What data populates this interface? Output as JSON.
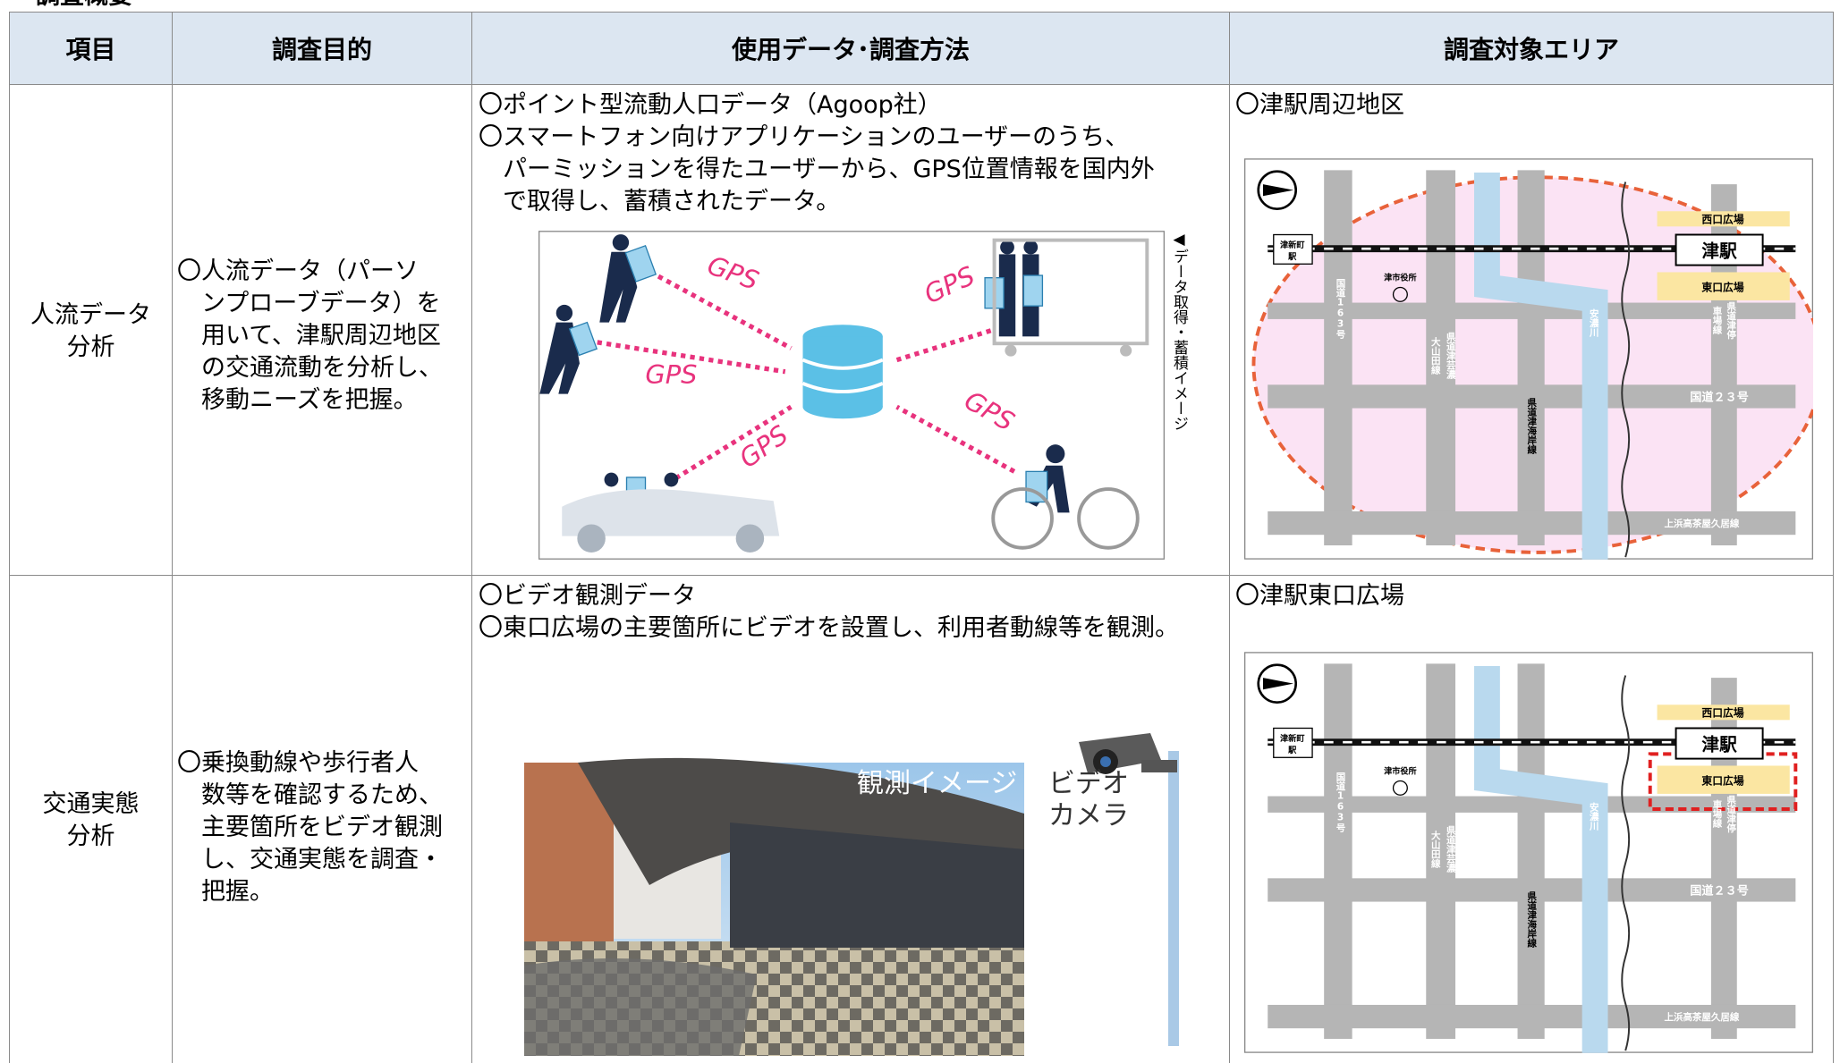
{
  "header": {
    "title": "調査概要"
  },
  "table": {
    "columns": [
      "項目",
      "調査目的",
      "使用データ･調査方法",
      "調査対象エリア"
    ],
    "rows": [
      {
        "item": [
          "人流データ",
          "分析"
        ],
        "purpose": [
          "〇人流データ（パーソ",
          "ンプローブデータ）を",
          "用いて、津駅周辺地区",
          "の交通流動を分析し、",
          "移動ニーズを把握。"
        ],
        "method": [
          "〇ポイント型流動人口データ（Agoop社）",
          "〇スマートフォン向けアプリケーションのユーザーのうち、",
          "パーミッションを得たユーザーから、GPS位置情報を国内外",
          "で取得し、蓄積されたデータ。"
        ],
        "figure": {
          "labels": [
            "GPS",
            "GPS",
            "GPS",
            "GPS",
            "GPS"
          ],
          "caption": "◀データ取得・蓄積イメージ"
        },
        "area": "〇津駅周辺地区",
        "map": {
          "west_plaza": "西口広場",
          "station": "津駅",
          "east_plaza": "東口広場",
          "shinmachi": [
            "津新町",
            "駅"
          ],
          "city_hall": "津市役所",
          "route163": "国道163号",
          "geino": [
            "県道津芸濃",
            "大山田線"
          ],
          "river": "安濃川",
          "teishaba": [
            "県道津停",
            "車場線"
          ],
          "route23": "国道２３号",
          "kaigan": "県道津海岸線",
          "kamihama": "上浜高茶屋久居線"
        }
      },
      {
        "item": [
          "交通実態",
          "分析"
        ],
        "purpose": [
          "〇乗換動線や歩行者人",
          "数等を確認するため、",
          "主要箇所をビデオ観測",
          "し、交通実態を調査・",
          "把握。"
        ],
        "method": [
          "〇ビデオ観測データ",
          "〇東口広場の主要箇所にビデオを設置し、利用者動線等を観測。"
        ],
        "figure": {
          "labels": [
            "観測イメージ",
            [
              "ビデオ",
              "カメラ"
            ]
          ]
        },
        "area": "〇津駅東口広場",
        "map": {
          "west_plaza": "西口広場",
          "station": "津駅",
          "east_plaza": "東口広場",
          "shinmachi": [
            "津新町",
            "駅"
          ],
          "city_hall": "津市役所",
          "route163": "国道163号",
          "geino": [
            "県道津芸濃",
            "大山田線"
          ],
          "river": "安濃川",
          "teishaba": [
            "県道津停",
            "車場線"
          ],
          "route23": "国道２３号",
          "kaigan": "県道津海岸線",
          "kamihama": "上浜高茶屋久居線"
        }
      }
    ]
  }
}
